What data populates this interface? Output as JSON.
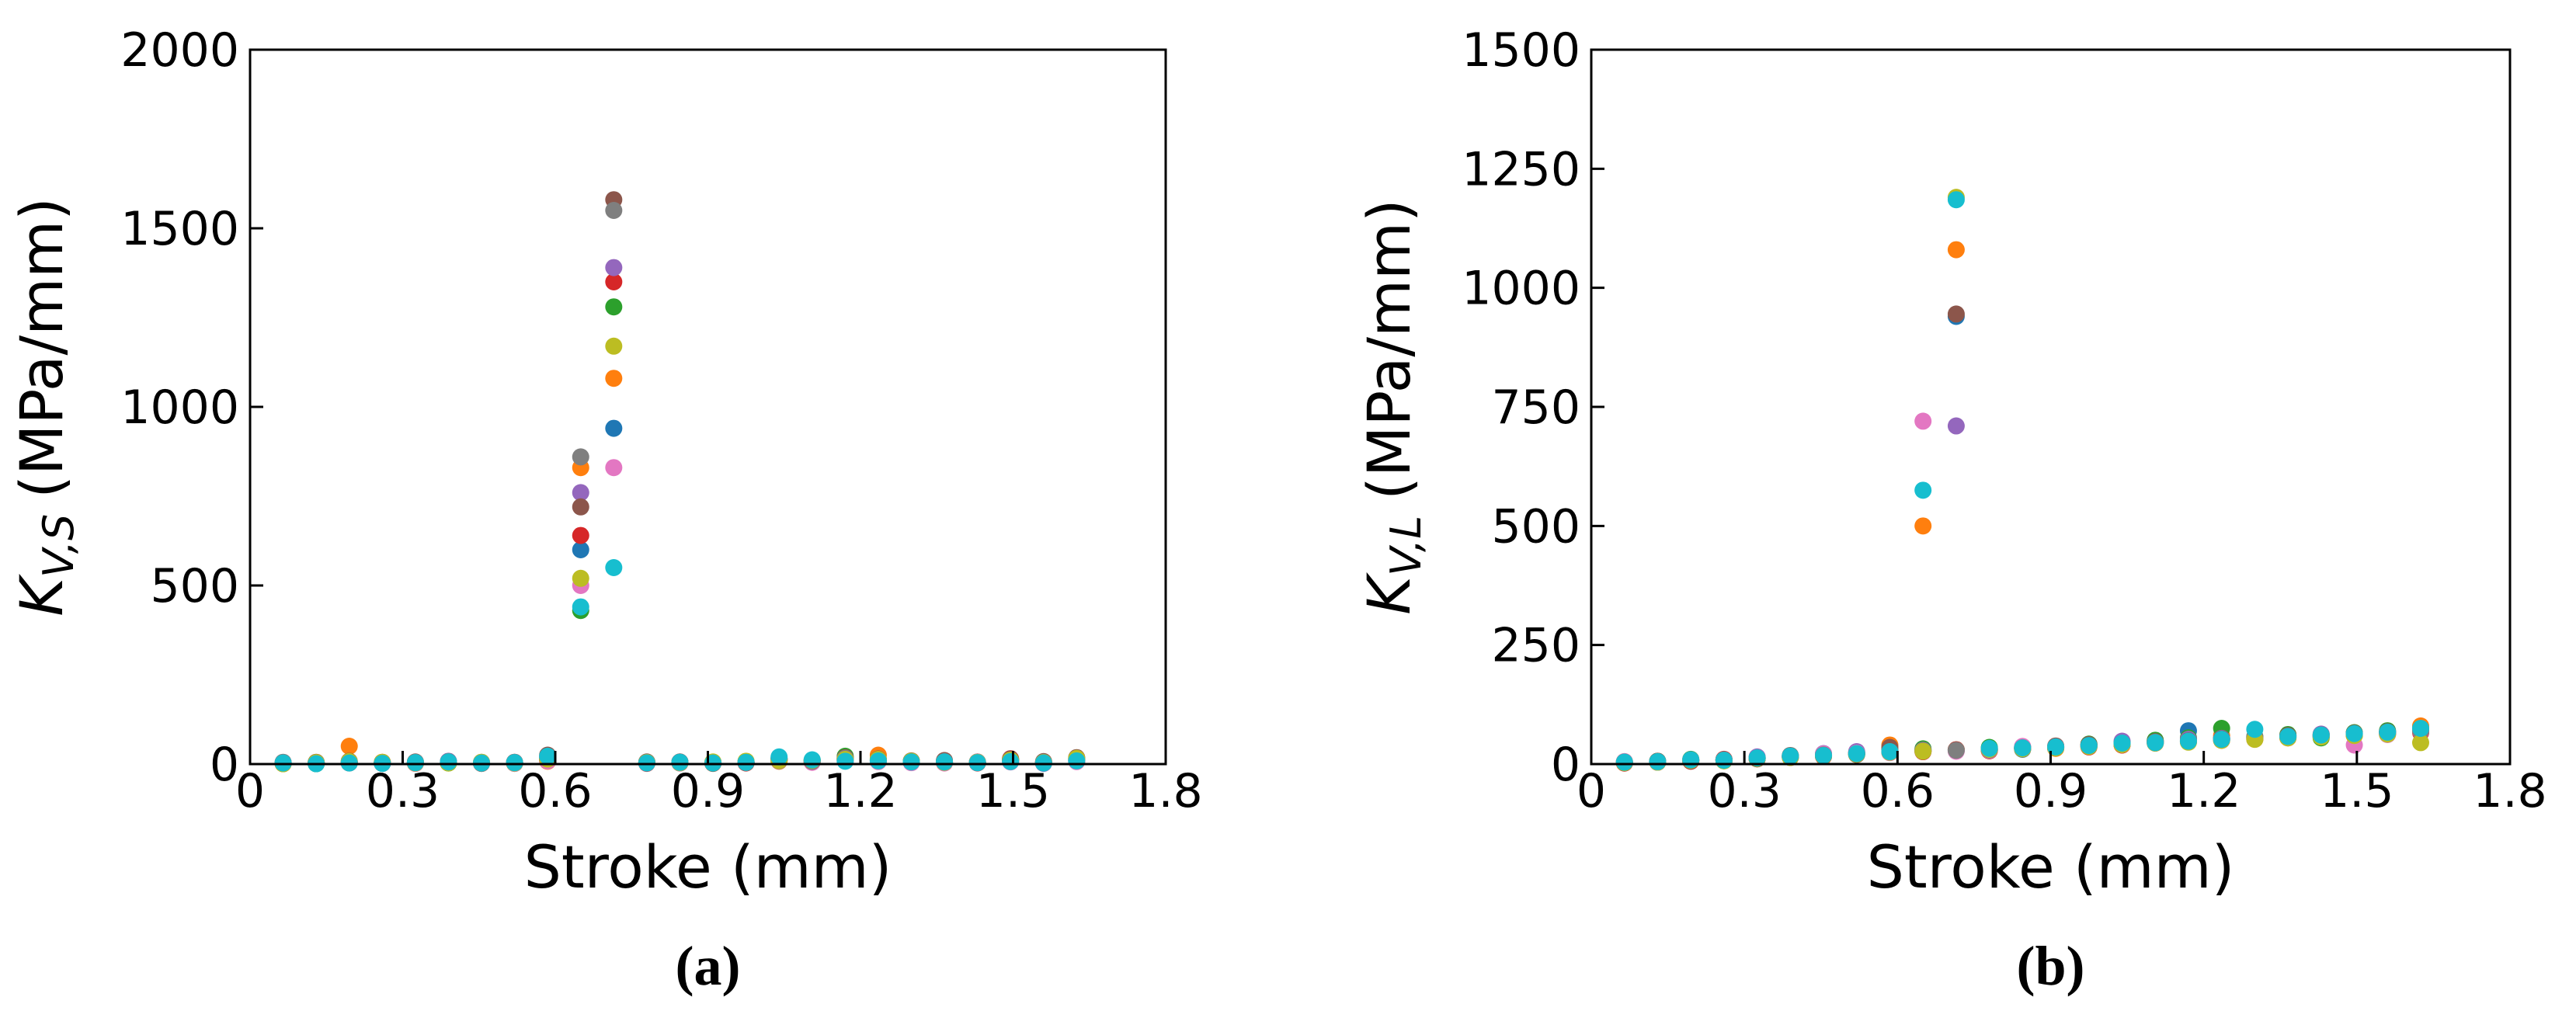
{
  "chart_data": [
    {
      "type": "scatter",
      "panel_label": "(a)",
      "xlabel": "Stroke (mm)",
      "ylabel": {
        "symbol": "K",
        "subscript": "V,S",
        "unit": "(MPa/mm)"
      },
      "xlim": [
        0,
        1.8
      ],
      "xticks": [
        0,
        0.3,
        0.6,
        0.9,
        1.2,
        1.5,
        1.8
      ],
      "ylim": [
        0,
        2000
      ],
      "yticks": [
        0,
        500,
        1000,
        1500,
        2000
      ],
      "x": [
        0.065,
        0.13,
        0.195,
        0.26,
        0.325,
        0.39,
        0.455,
        0.52,
        0.585,
        0.65,
        0.715,
        0.78,
        0.845,
        0.91,
        0.975,
        1.04,
        1.105,
        1.17,
        1.235,
        1.3,
        1.365,
        1.43,
        1.495,
        1.56,
        1.625
      ],
      "series": [
        {
          "color": "#1f77b4",
          "values": [
            2,
            3,
            4,
            2,
            3,
            5,
            3,
            4,
            10,
            600,
            940,
            4,
            5,
            3,
            6,
            12,
            8,
            15,
            10,
            6,
            5,
            4,
            8,
            3,
            10
          ]
        },
        {
          "color": "#ff7f0e",
          "values": [
            1,
            2,
            50,
            3,
            2,
            4,
            2,
            3,
            8,
            830,
            1080,
            3,
            4,
            2,
            5,
            8,
            6,
            10,
            25,
            8,
            6,
            5,
            10,
            4,
            12
          ]
        },
        {
          "color": "#2ca02c",
          "values": [
            3,
            1,
            6,
            4,
            5,
            3,
            4,
            2,
            12,
            430,
            1280,
            5,
            3,
            4,
            4,
            10,
            10,
            22,
            12,
            7,
            4,
            6,
            12,
            5,
            15
          ]
        },
        {
          "color": "#d62728",
          "values": [
            2,
            4,
            3,
            5,
            3,
            6,
            2,
            5,
            15,
            640,
            1350,
            2,
            6,
            3,
            3,
            14,
            7,
            12,
            8,
            5,
            6,
            3,
            15,
            6,
            8
          ]
        },
        {
          "color": "#9467bd",
          "values": [
            4,
            2,
            5,
            3,
            4,
            8,
            5,
            3,
            20,
            760,
            1390,
            4,
            4,
            5,
            7,
            9,
            9,
            14,
            9,
            6,
            8,
            4,
            9,
            2,
            11
          ]
        },
        {
          "color": "#8c564b",
          "values": [
            3,
            5,
            8,
            2,
            6,
            4,
            3,
            4,
            25,
            720,
            1580,
            6,
            5,
            2,
            5,
            15,
            10,
            18,
            14,
            9,
            10,
            5,
            14,
            7,
            18
          ]
        },
        {
          "color": "#e377c2",
          "values": [
            2,
            3,
            6,
            4,
            2,
            5,
            4,
            2,
            9,
            500,
            830,
            3,
            3,
            4,
            6,
            11,
            5,
            9,
            7,
            4,
            3,
            6,
            6,
            3,
            7
          ]
        },
        {
          "color": "#7f7f7f",
          "values": [
            5,
            2,
            4,
            3,
            5,
            7,
            2,
            5,
            18,
            860,
            1550,
            5,
            6,
            3,
            4,
            13,
            8,
            16,
            11,
            7,
            7,
            4,
            10,
            5,
            13
          ]
        },
        {
          "color": "#bcbd22",
          "values": [
            1,
            4,
            7,
            5,
            3,
            3,
            5,
            3,
            14,
            520,
            1170,
            4,
            4,
            6,
            8,
            10,
            11,
            13,
            13,
            8,
            5,
            5,
            11,
            4,
            16
          ]
        },
        {
          "color": "#17becf",
          "values": [
            3,
            1,
            3,
            2,
            4,
            6,
            3,
            4,
            22,
            440,
            550,
            3,
            5,
            3,
            5,
            20,
            12,
            8,
            9,
            6,
            6,
            4,
            7,
            3,
            9
          ]
        }
      ]
    },
    {
      "type": "scatter",
      "panel_label": "(b)",
      "xlabel": "Stroke (mm)",
      "ylabel": {
        "symbol": "K",
        "subscript": "V,L",
        "unit": "(MPa/mm)"
      },
      "xlim": [
        0,
        1.8
      ],
      "xticks": [
        0,
        0.3,
        0.6,
        0.9,
        1.2,
        1.5,
        1.8
      ],
      "ylim": [
        0,
        1500
      ],
      "yticks": [
        0,
        250,
        500,
        750,
        1000,
        1250,
        1500
      ],
      "x": [
        0.065,
        0.13,
        0.195,
        0.26,
        0.325,
        0.39,
        0.455,
        0.52,
        0.585,
        0.65,
        0.715,
        0.78,
        0.845,
        0.91,
        0.975,
        1.04,
        1.105,
        1.17,
        1.235,
        1.3,
        1.365,
        1.43,
        1.495,
        1.56,
        1.625
      ],
      "series": [
        {
          "color": "#1f77b4",
          "values": [
            3,
            4,
            7,
            9,
            13,
            16,
            17,
            23,
            28,
            30,
            940,
            32,
            31,
            36,
            40,
            44,
            48,
            70,
            55,
            54,
            60,
            58,
            63,
            66,
            72
          ]
        },
        {
          "color": "#ff7f0e",
          "values": [
            5,
            5,
            9,
            8,
            11,
            14,
            19,
            24,
            40,
            500,
            1080,
            28,
            34,
            33,
            37,
            40,
            46,
            50,
            60,
            52,
            56,
            62,
            60,
            64,
            80
          ]
        },
        {
          "color": "#2ca02c",
          "values": [
            4,
            6,
            10,
            7,
            14,
            17,
            20,
            21,
            30,
            32,
            30,
            35,
            35,
            37,
            42,
            45,
            50,
            55,
            75,
            58,
            62,
            55,
            66,
            70,
            68
          ]
        },
        {
          "color": "#d62728",
          "values": [
            2,
            4,
            6,
            10,
            12,
            15,
            16,
            22,
            25,
            26,
            30,
            28,
            32,
            34,
            36,
            40,
            44,
            47,
            50,
            53,
            55,
            58,
            61,
            63,
            66
          ]
        },
        {
          "color": "#9467bd",
          "values": [
            4,
            5,
            8,
            8,
            15,
            14,
            22,
            26,
            27,
            29,
            710,
            31,
            36,
            35,
            39,
            48,
            46,
            52,
            54,
            57,
            59,
            63,
            64,
            67,
            74
          ]
        },
        {
          "color": "#8c564b",
          "values": [
            3,
            6,
            7,
            9,
            11,
            18,
            18,
            20,
            35,
            27,
            945,
            30,
            33,
            38,
            41,
            43,
            47,
            49,
            53,
            56,
            60,
            61,
            65,
            68,
            71
          ]
        },
        {
          "color": "#e377c2",
          "values": [
            5,
            4,
            9,
            8,
            13,
            16,
            21,
            23,
            24,
            720,
            27,
            29,
            37,
            36,
            38,
            41,
            45,
            48,
            51,
            55,
            57,
            59,
            40,
            62,
            69
          ]
        },
        {
          "color": "#7f7f7f",
          "values": [
            4,
            5,
            8,
            9,
            12,
            15,
            19,
            22,
            26,
            28,
            29,
            30,
            34,
            35,
            38,
            42,
            46,
            48,
            52,
            56,
            58,
            60,
            62,
            66,
            70
          ]
        },
        {
          "color": "#bcbd22",
          "values": [
            3,
            4,
            8,
            7,
            12,
            14,
            17,
            21,
            25,
            27,
            1190,
            31,
            32,
            34,
            37,
            41,
            44,
            46,
            50,
            52,
            55,
            57,
            60,
            63,
            45
          ]
        },
        {
          "color": "#17becf",
          "values": [
            4,
            5,
            9,
            8,
            13,
            17,
            18,
            22,
            26,
            575,
            1185,
            33,
            34,
            36,
            39,
            44,
            45,
            48,
            52,
            73,
            58,
            61,
            64,
            67,
            75
          ]
        }
      ]
    }
  ]
}
